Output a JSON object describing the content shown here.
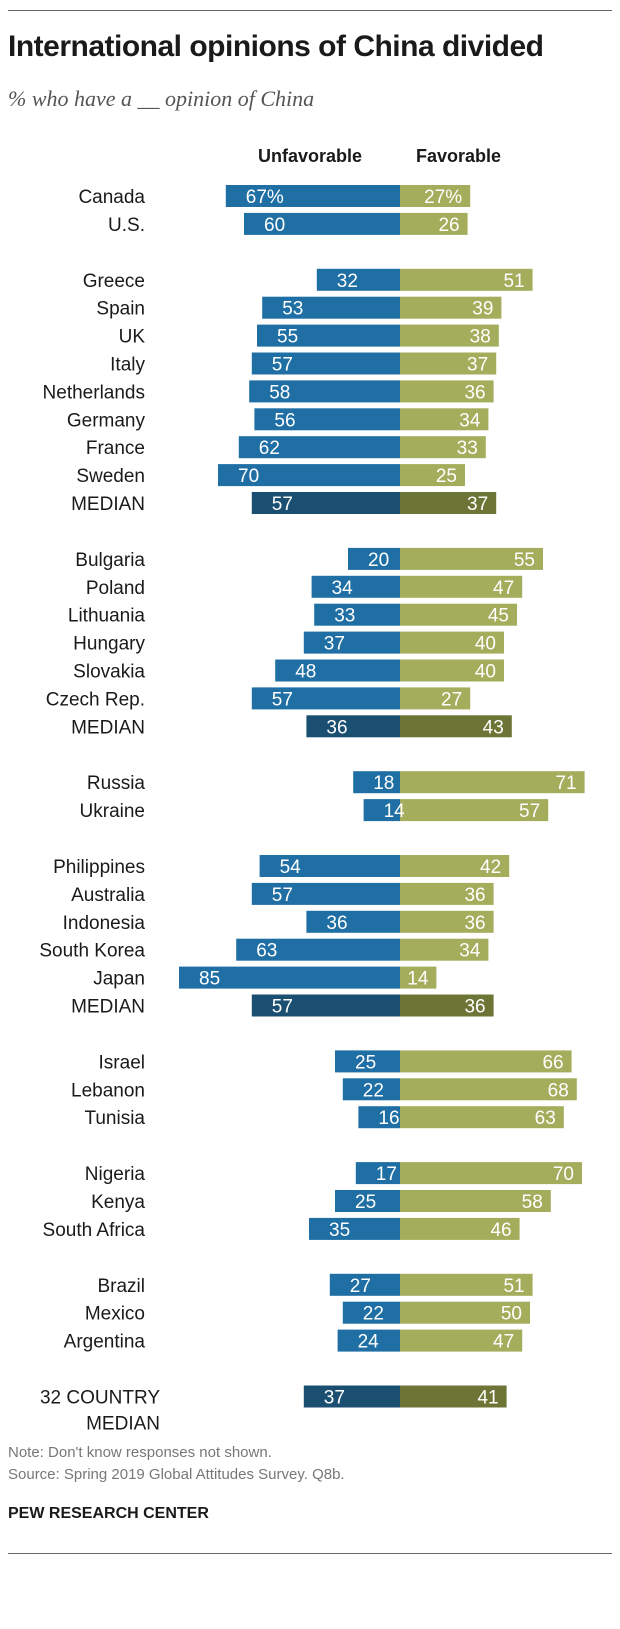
{
  "header": {
    "title": "International opinions of China divided",
    "subtitle": "% who have a __ opinion of China"
  },
  "columns": {
    "unfavorable": "Unfavorable",
    "favorable": "Favorable"
  },
  "footer": {
    "note": "Note: Don't know responses not shown.",
    "source": "Source: Spring 2019 Global Attitudes Survey. Q8b.",
    "brand": "PEW RESEARCH CENTER"
  },
  "colors": {
    "unfavorable": "#1f6fa5",
    "favorable": "#a3ad5c",
    "unfavorable_median": "#1b4f72",
    "favorable_median": "#6d7536"
  },
  "chart_data": {
    "type": "bar",
    "orientation": "diverging-horizontal",
    "series": [
      {
        "name": "Unfavorable"
      },
      {
        "name": "Favorable"
      }
    ],
    "rows": [
      {
        "label": "Canada",
        "unfavorable": 67,
        "favorable": 27,
        "unf_text": "67%",
        "fav_text": "27%",
        "group": 1
      },
      {
        "label": "U.S.",
        "unfavorable": 60,
        "favorable": 26,
        "unf_text": "60",
        "fav_text": "26",
        "group": 1
      },
      {
        "label": "Greece",
        "unfavorable": 32,
        "favorable": 51,
        "unf_text": "32",
        "fav_text": "51",
        "group": 2
      },
      {
        "label": "Spain",
        "unfavorable": 53,
        "favorable": 39,
        "unf_text": "53",
        "fav_text": "39",
        "group": 2
      },
      {
        "label": "UK",
        "unfavorable": 55,
        "favorable": 38,
        "unf_text": "55",
        "fav_text": "38",
        "group": 2
      },
      {
        "label": "Italy",
        "unfavorable": 57,
        "favorable": 37,
        "unf_text": "57",
        "fav_text": "37",
        "group": 2
      },
      {
        "label": "Netherlands",
        "unfavorable": 58,
        "favorable": 36,
        "unf_text": "58",
        "fav_text": "36",
        "group": 2
      },
      {
        "label": "Germany",
        "unfavorable": 56,
        "favorable": 34,
        "unf_text": "56",
        "fav_text": "34",
        "group": 2
      },
      {
        "label": "France",
        "unfavorable": 62,
        "favorable": 33,
        "unf_text": "62",
        "fav_text": "33",
        "group": 2
      },
      {
        "label": "Sweden",
        "unfavorable": 70,
        "favorable": 25,
        "unf_text": "70",
        "fav_text": "25",
        "group": 2
      },
      {
        "label": "MEDIAN",
        "unfavorable": 57,
        "favorable": 37,
        "unf_text": "57",
        "fav_text": "37",
        "group": 2,
        "median": true
      },
      {
        "label": "Bulgaria",
        "unfavorable": 20,
        "favorable": 55,
        "unf_text": "20",
        "fav_text": "55",
        "group": 3
      },
      {
        "label": "Poland",
        "unfavorable": 34,
        "favorable": 47,
        "unf_text": "34",
        "fav_text": "47",
        "group": 3
      },
      {
        "label": "Lithuania",
        "unfavorable": 33,
        "favorable": 45,
        "unf_text": "33",
        "fav_text": "45",
        "group": 3
      },
      {
        "label": "Hungary",
        "unfavorable": 37,
        "favorable": 40,
        "unf_text": "37",
        "fav_text": "40",
        "group": 3
      },
      {
        "label": "Slovakia",
        "unfavorable": 48,
        "favorable": 40,
        "unf_text": "48",
        "fav_text": "40",
        "group": 3
      },
      {
        "label": "Czech Rep.",
        "unfavorable": 57,
        "favorable": 27,
        "unf_text": "57",
        "fav_text": "27",
        "group": 3
      },
      {
        "label": "MEDIAN",
        "unfavorable": 36,
        "favorable": 43,
        "unf_text": "36",
        "fav_text": "43",
        "group": 3,
        "median": true
      },
      {
        "label": "Russia",
        "unfavorable": 18,
        "favorable": 71,
        "unf_text": "18",
        "fav_text": "71",
        "group": 4
      },
      {
        "label": "Ukraine",
        "unfavorable": 14,
        "favorable": 57,
        "unf_text": "14",
        "fav_text": "57",
        "group": 4
      },
      {
        "label": "Philippines",
        "unfavorable": 54,
        "favorable": 42,
        "unf_text": "54",
        "fav_text": "42",
        "group": 5
      },
      {
        "label": "Australia",
        "unfavorable": 57,
        "favorable": 36,
        "unf_text": "57",
        "fav_text": "36",
        "group": 5
      },
      {
        "label": "Indonesia",
        "unfavorable": 36,
        "favorable": 36,
        "unf_text": "36",
        "fav_text": "36",
        "group": 5
      },
      {
        "label": "South Korea",
        "unfavorable": 63,
        "favorable": 34,
        "unf_text": "63",
        "fav_text": "34",
        "group": 5
      },
      {
        "label": "Japan",
        "unfavorable": 85,
        "favorable": 14,
        "unf_text": "85",
        "fav_text": "14",
        "group": 5
      },
      {
        "label": "MEDIAN",
        "unfavorable": 57,
        "favorable": 36,
        "unf_text": "57",
        "fav_text": "36",
        "group": 5,
        "median": true
      },
      {
        "label": "Israel",
        "unfavorable": 25,
        "favorable": 66,
        "unf_text": "25",
        "fav_text": "66",
        "group": 6
      },
      {
        "label": "Lebanon",
        "unfavorable": 22,
        "favorable": 68,
        "unf_text": "22",
        "fav_text": "68",
        "group": 6
      },
      {
        "label": "Tunisia",
        "unfavorable": 16,
        "favorable": 63,
        "unf_text": "16",
        "fav_text": "63",
        "group": 6
      },
      {
        "label": "Nigeria",
        "unfavorable": 17,
        "favorable": 70,
        "unf_text": "17",
        "fav_text": "70",
        "group": 7
      },
      {
        "label": "Kenya",
        "unfavorable": 25,
        "favorable": 58,
        "unf_text": "25",
        "fav_text": "58",
        "group": 7
      },
      {
        "label": "South Africa",
        "unfavorable": 35,
        "favorable": 46,
        "unf_text": "35",
        "fav_text": "46",
        "group": 7
      },
      {
        "label": "Brazil",
        "unfavorable": 27,
        "favorable": 51,
        "unf_text": "27",
        "fav_text": "51",
        "group": 8
      },
      {
        "label": "Mexico",
        "unfavorable": 22,
        "favorable": 50,
        "unf_text": "22",
        "fav_text": "50",
        "group": 8
      },
      {
        "label": "Argentina",
        "unfavorable": 24,
        "favorable": 47,
        "unf_text": "24",
        "fav_text": "47",
        "group": 8
      },
      {
        "label": "32 COUNTRY|MEDIAN",
        "unfavorable": 37,
        "favorable": 41,
        "unf_text": "37",
        "fav_text": "41",
        "group": 9,
        "median": true
      }
    ]
  }
}
